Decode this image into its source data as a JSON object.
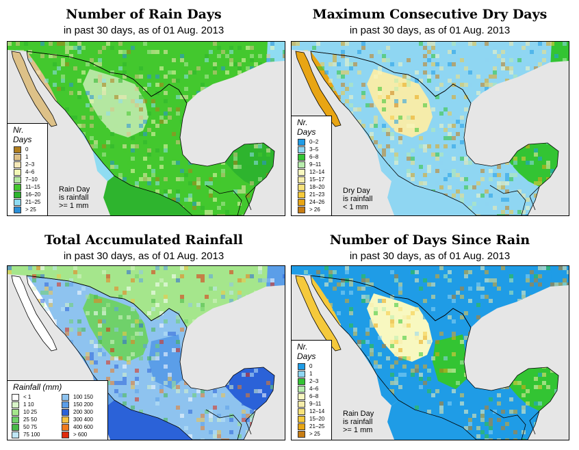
{
  "date": "01 Aug. 2013",
  "panels": [
    {
      "title": "Number of Rain Days",
      "subtitle": "in past 30 days, as of  01 Aug. 2013",
      "legend_title": "Nr. Days",
      "legend": [
        {
          "label": "0",
          "color": "#b07e1e"
        },
        {
          "label": "1",
          "color": "#ddc188"
        },
        {
          "label": "2–3",
          "color": "#f5e8b8"
        },
        {
          "label": "4–6",
          "color": "#f2f7b6"
        },
        {
          "label": "7–10",
          "color": "#b4e7a1"
        },
        {
          "label": "11–15",
          "color": "#43c82e"
        },
        {
          "label": "16–20",
          "color": "#2eb42e"
        },
        {
          "label": "21–25",
          "color": "#8fdcf2"
        },
        {
          "label": "> 25",
          "color": "#2a8fd8"
        }
      ],
      "note": [
        "Rain Day",
        "is rainfall",
        ">= 1 mm"
      ],
      "zones": {
        "nw": "#ddc188",
        "north": "#43c82e",
        "plateau": "#b4e7a1",
        "west": "#8fdcf2",
        "south": "#2eb42e",
        "east": "#43c82e",
        "yucatan": "#2eb42e",
        "usa": "#43c82e",
        "usa_e": "#8fdcf2"
      }
    },
    {
      "title": "Maximum Consecutive Dry Days",
      "subtitle": "in past 30 days, as of  01 Aug. 2013",
      "legend_title": "Nr. Days",
      "legend": [
        {
          "label": "0–2",
          "color": "#1f9ce6"
        },
        {
          "label": "3–5",
          "color": "#8fd6f2"
        },
        {
          "label": "6–8",
          "color": "#33c433"
        },
        {
          "label": "9–11",
          "color": "#b8edae"
        },
        {
          "label": "12–14",
          "color": "#f8f8c0"
        },
        {
          "label": "15–17",
          "color": "#f5ecaa"
        },
        {
          "label": "18–20",
          "color": "#f8e27a"
        },
        {
          "label": "21–23",
          "color": "#f5c93c"
        },
        {
          "label": "24–26",
          "color": "#e8a514"
        },
        {
          "label": "> 26",
          "color": "#c87d14"
        }
      ],
      "note": [
        "Dry Day",
        "is rainfall",
        "< 1 mm"
      ],
      "zones": {
        "nw": "#e8a514",
        "north": "#8fd6f2",
        "plateau": "#f5ecaa",
        "west": "#8fd6f2",
        "south": "#8fd6f2",
        "east": "#8fd6f2",
        "yucatan": "#33c433",
        "usa": "#8fd6f2",
        "usa_e": "#33c433"
      }
    },
    {
      "title": "Total Accumulated Rainfall",
      "subtitle": "in past 30 days, as of  01 Aug. 2013",
      "legend_title": "Rainfall (mm)",
      "legend_left": [
        {
          "label": "< 1",
          "color": "#ffffff"
        },
        {
          "label": "1   10",
          "color": "#d8f4c8"
        },
        {
          "label": "10   25",
          "color": "#a5e68c"
        },
        {
          "label": "25   50",
          "color": "#6fd16a"
        },
        {
          "label": "50   75",
          "color": "#47b847"
        },
        {
          "label": "75   100",
          "color": "#bfe6f5"
        }
      ],
      "legend_right": [
        {
          "label": "100   150",
          "color": "#8ec3ef"
        },
        {
          "label": "150   200",
          "color": "#5b9ee8"
        },
        {
          "label": "200   300",
          "color": "#2b62d8"
        },
        {
          "label": "300   400",
          "color": "#f5c242"
        },
        {
          "label": "400   600",
          "color": "#f07a1c"
        },
        {
          "label": "> 600",
          "color": "#e02a0c"
        }
      ],
      "zones": {
        "nw": "#ffffff",
        "north": "#8ec3ef",
        "plateau": "#6fd16a",
        "west": "#5b9ee8",
        "south": "#2b62d8",
        "east": "#5b9ee8",
        "yucatan": "#2b62d8",
        "usa": "#a5e68c",
        "usa_e": "#5b9ee8"
      }
    },
    {
      "title": "Number of Days Since Rain",
      "subtitle": "in past 30 days, as of  01 Aug. 2013",
      "legend_title": "Nr. Days",
      "legend": [
        {
          "label": "0",
          "color": "#1f9ce6"
        },
        {
          "label": "1",
          "color": "#8fd6f2"
        },
        {
          "label": "2–3",
          "color": "#33c433"
        },
        {
          "label": "4–6",
          "color": "#b8edae"
        },
        {
          "label": "6–8",
          "color": "#f8f8c0"
        },
        {
          "label": "9–11",
          "color": "#f5ecaa"
        },
        {
          "label": "12–14",
          "color": "#f8e27a"
        },
        {
          "label": "15–20",
          "color": "#f5c93c"
        },
        {
          "label": "21–25",
          "color": "#e8a514"
        },
        {
          "label": "> 25",
          "color": "#c87d14"
        }
      ],
      "note": [
        "Rain Day",
        "is rainfall",
        ">= 1 mm"
      ],
      "zones": {
        "nw": "#f5c93c",
        "north": "#1f9ce6",
        "plateau": "#f8f8c0",
        "west": "#1f9ce6",
        "south": "#1f9ce6",
        "east": "#33c433",
        "yucatan": "#33c433",
        "usa": "#1f9ce6",
        "usa_e": "#1f9ce6"
      }
    }
  ]
}
